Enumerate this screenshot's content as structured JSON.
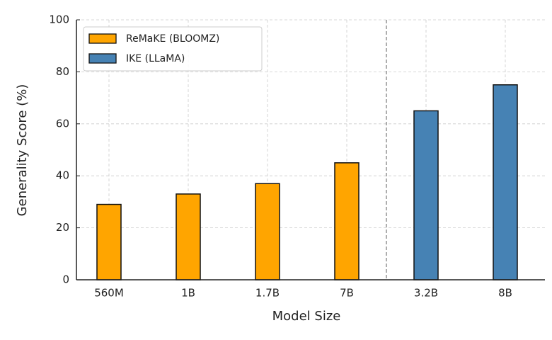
{
  "chart_data": {
    "type": "bar",
    "xlabel": "Model Size",
    "ylabel": "Generality Score (%)",
    "categories": [
      "560M",
      "1B",
      "1.7B",
      "7B",
      "3.2B",
      "8B"
    ],
    "series": [
      {
        "name": "ReMaKE (BLOOMZ)",
        "color": "#ffa500",
        "values": [
          29,
          33,
          37,
          45,
          null,
          null
        ]
      },
      {
        "name": "IKE (LLaMA)",
        "color": "#4682b4",
        "values": [
          null,
          null,
          null,
          null,
          65,
          75
        ]
      }
    ],
    "ylim": [
      0,
      100
    ],
    "yticks": [
      0,
      20,
      40,
      60,
      80,
      100
    ],
    "grid": true,
    "legend": "upper left"
  }
}
